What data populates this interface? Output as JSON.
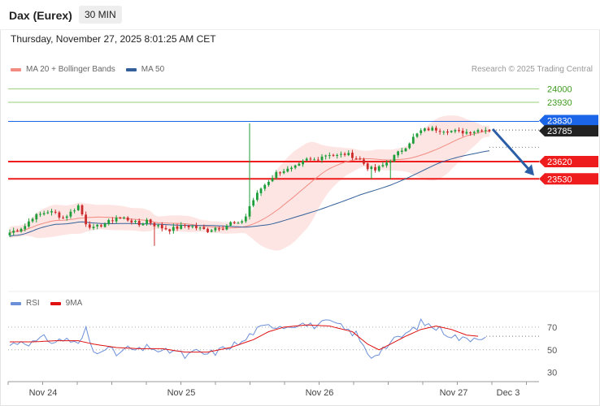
{
  "header": {
    "instrument": "Dax (Eurex)",
    "interval": "30 MIN",
    "timestamp": "Thursday, November 27, 2025 8:01:25 AM CET",
    "copyright": "Research © 2025 Trading Central"
  },
  "colors": {
    "bollinger": "#f28b82",
    "bollinger_fill": "#fde0de",
    "ma50": "#33609a",
    "candle_up": "#1e9e3a",
    "candle_down": "#cc2b2b",
    "support": "#ee1c1c",
    "resistance_green": "#9acd7a",
    "resistance_blue": "#1b66e8",
    "last_price": "#222222",
    "rsi": "#6b8fd8",
    "rsi_ma": "#e01010",
    "forecast_arrow": "#2b5ea6"
  },
  "chart_data": [
    {
      "type": "candlestick",
      "title": "",
      "legend": [
        {
          "name": "MA 20 + Bollinger Bands",
          "color": "#f28b82"
        },
        {
          "name": "MA 50",
          "color": "#33609a"
        }
      ],
      "x_ticks": [
        "Nov 24",
        "Nov 25",
        "Nov 26",
        "Nov 27",
        "Dec 3"
      ],
      "ylim": [
        22980,
        24040
      ],
      "grid": false,
      "levels": [
        {
          "value": 24000,
          "label": "24000",
          "kind": "resistance",
          "color": "#9acd7a"
        },
        {
          "value": 23930,
          "label": "23930",
          "kind": "resistance",
          "color": "#9acd7a"
        },
        {
          "value": 23830,
          "label": "23830",
          "kind": "resistance",
          "color": "#1b66e8"
        },
        {
          "value": 23785,
          "label": "23785",
          "kind": "last",
          "color": "#222222"
        },
        {
          "value": 23620,
          "label": "23620",
          "kind": "support",
          "color": "#ee1c1c"
        },
        {
          "value": 23530,
          "label": "23530",
          "kind": "support",
          "color": "#ee1c1c"
        }
      ],
      "close_path": [
        [
          0,
          23250
        ],
        [
          2,
          23265
        ],
        [
          4,
          23285
        ],
        [
          6,
          23330
        ],
        [
          8,
          23345
        ],
        [
          10,
          23360
        ],
        [
          12,
          23350
        ],
        [
          14,
          23325
        ],
        [
          16,
          23355
        ],
        [
          18,
          23390
        ],
        [
          20,
          23300
        ],
        [
          22,
          23270
        ],
        [
          24,
          23290
        ],
        [
          26,
          23305
        ],
        [
          28,
          23330
        ],
        [
          30,
          23325
        ],
        [
          32,
          23310
        ],
        [
          34,
          23290
        ],
        [
          36,
          23315
        ],
        [
          38,
          23290
        ],
        [
          40,
          23275
        ],
        [
          42,
          23265
        ],
        [
          44,
          23275
        ],
        [
          46,
          23285
        ],
        [
          48,
          23280
        ],
        [
          50,
          23270
        ],
        [
          52,
          23260
        ],
        [
          54,
          23275
        ],
        [
          56,
          23275
        ],
        [
          58,
          23300
        ],
        [
          60,
          23290
        ],
        [
          62,
          23335
        ],
        [
          64,
          23420
        ],
        [
          66,
          23480
        ],
        [
          68,
          23520
        ],
        [
          70,
          23560
        ],
        [
          72,
          23575
        ],
        [
          74,
          23580
        ],
        [
          76,
          23600
        ],
        [
          78,
          23630
        ],
        [
          80,
          23630
        ],
        [
          82,
          23650
        ],
        [
          84,
          23660
        ],
        [
          86,
          23650
        ],
        [
          88,
          23660
        ],
        [
          90,
          23650
        ],
        [
          92,
          23630
        ],
        [
          94,
          23590
        ],
        [
          96,
          23575
        ],
        [
          98,
          23600
        ],
        [
          100,
          23630
        ],
        [
          102,
          23665
        ],
        [
          104,
          23700
        ],
        [
          106,
          23745
        ],
        [
          108,
          23780
        ],
        [
          110,
          23790
        ],
        [
          112,
          23790
        ],
        [
          114,
          23785
        ],
        [
          116,
          23780
        ],
        [
          118,
          23775
        ],
        [
          120,
          23775
        ],
        [
          122,
          23780
        ],
        [
          124,
          23790
        ],
        [
          126,
          23785
        ]
      ],
      "forecast": {
        "direction": "down",
        "target": 23530
      }
    },
    {
      "type": "line",
      "title": "",
      "series": [
        {
          "name": "RSI",
          "color": "#6b8fd8"
        },
        {
          "name": "9MA",
          "color": "#e01010"
        }
      ],
      "y_ticks": [
        70,
        50,
        30
      ],
      "ylim": [
        24,
        80
      ],
      "rsi": [
        [
          0,
          54
        ],
        [
          3,
          58
        ],
        [
          6,
          56
        ],
        [
          9,
          60
        ],
        [
          12,
          57
        ],
        [
          15,
          60
        ],
        [
          18,
          54
        ],
        [
          20,
          68
        ],
        [
          22,
          48
        ],
        [
          25,
          53
        ],
        [
          28,
          46
        ],
        [
          31,
          51
        ],
        [
          34,
          49
        ],
        [
          37,
          53
        ],
        [
          40,
          47
        ],
        [
          43,
          50
        ],
        [
          46,
          44
        ],
        [
          49,
          48
        ],
        [
          52,
          46
        ],
        [
          55,
          49
        ],
        [
          58,
          54
        ],
        [
          61,
          56
        ],
        [
          64,
          66
        ],
        [
          67,
          70
        ],
        [
          70,
          72
        ],
        [
          73,
          71
        ],
        [
          76,
          74
        ],
        [
          79,
          71
        ],
        [
          82,
          73
        ],
        [
          85,
          74
        ],
        [
          88,
          68
        ],
        [
          91,
          64
        ],
        [
          93,
          52
        ],
        [
          95,
          44
        ],
        [
          97,
          49
        ],
        [
          100,
          56
        ],
        [
          103,
          62
        ],
        [
          106,
          68
        ],
        [
          108,
          74
        ],
        [
          110,
          72
        ],
        [
          113,
          68
        ],
        [
          116,
          63
        ],
        [
          119,
          59
        ],
        [
          122,
          61
        ],
        [
          125,
          63
        ]
      ],
      "rsi_ma": [
        [
          0,
          57
        ],
        [
          6,
          57
        ],
        [
          12,
          58
        ],
        [
          18,
          58
        ],
        [
          22,
          55
        ],
        [
          28,
          52
        ],
        [
          34,
          51
        ],
        [
          40,
          51
        ],
        [
          46,
          48
        ],
        [
          52,
          48
        ],
        [
          58,
          52
        ],
        [
          64,
          59
        ],
        [
          68,
          66
        ],
        [
          72,
          70
        ],
        [
          78,
          72
        ],
        [
          84,
          71
        ],
        [
          90,
          66
        ],
        [
          94,
          55
        ],
        [
          97,
          50
        ],
        [
          100,
          55
        ],
        [
          104,
          62
        ],
        [
          108,
          68
        ],
        [
          112,
          71
        ],
        [
          116,
          68
        ],
        [
          120,
          63
        ],
        [
          123,
          62
        ]
      ]
    }
  ]
}
